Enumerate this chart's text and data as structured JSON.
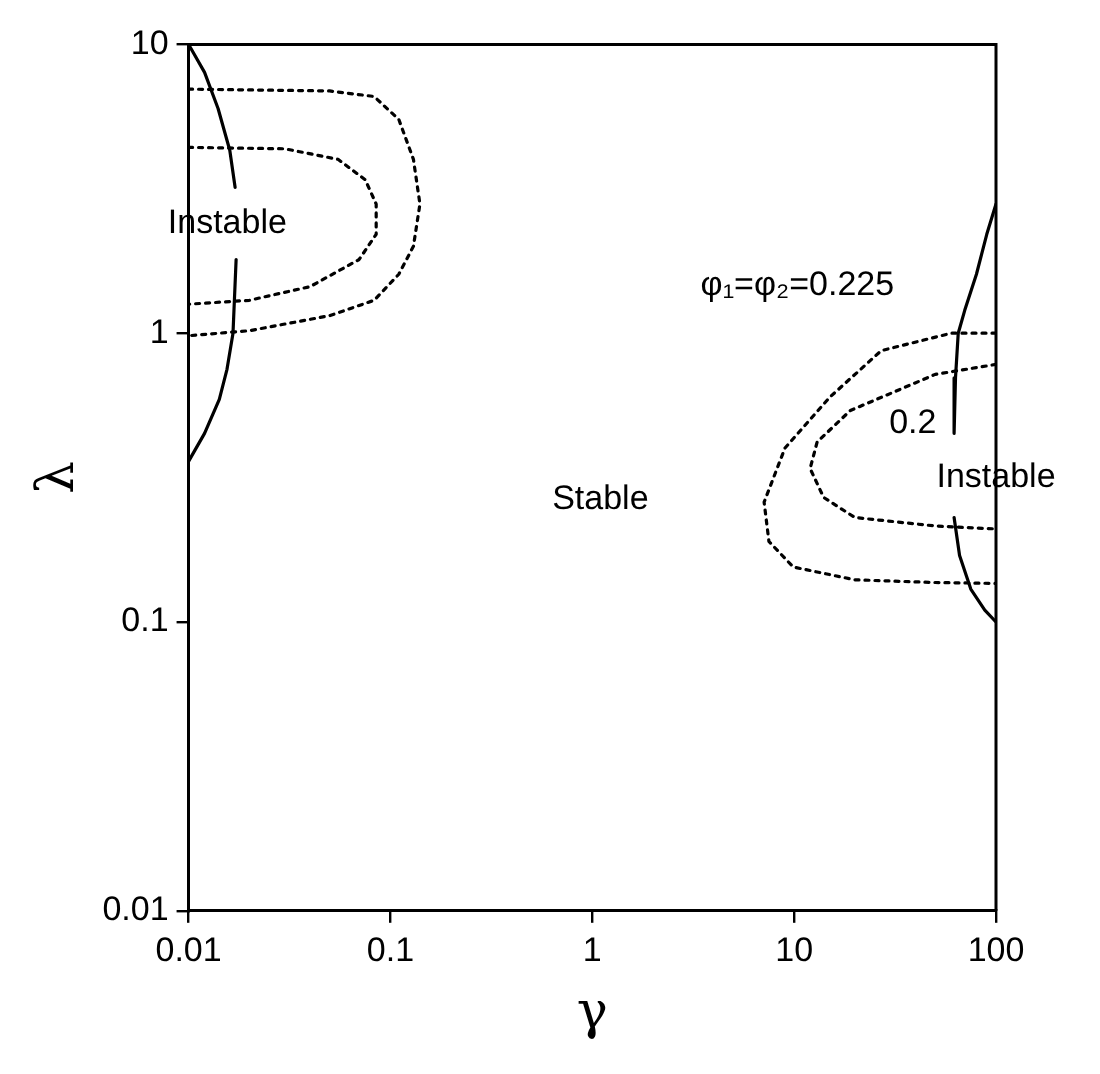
{
  "chart_data": {
    "type": "line",
    "xlabel": "γ",
    "ylabel": "λ",
    "log": "xy",
    "grid": false,
    "legend": false,
    "marker": "none",
    "xlim": [
      0.01,
      100
    ],
    "ylim": [
      0.01,
      10
    ],
    "xticks": [
      0.01,
      0.1,
      1,
      10,
      100
    ],
    "yticks": [
      0.01,
      0.1,
      1,
      10
    ],
    "series": [
      {
        "color": "#000000",
        "line_style": "solid",
        "x": [
          0.01,
          0.012,
          0.014,
          0.016,
          0.017
        ],
        "values": [
          10,
          8,
          6,
          4.3,
          3.2
        ]
      },
      {
        "color": "#000000",
        "line_style": "solid",
        "x": [
          0.0172,
          0.0166,
          0.0155,
          0.0142,
          0.012,
          0.01
        ],
        "values": [
          1.8,
          1,
          0.75,
          0.59,
          0.45,
          0.36
        ]
      },
      {
        "color": "#000000",
        "line_style": "dotted",
        "x": [
          0.01,
          0.05,
          0.083,
          0.11,
          0.13,
          0.14,
          0.13,
          0.11,
          0.083,
          0.05,
          0.02,
          0.01
        ],
        "values": [
          7,
          6.9,
          6.6,
          5.5,
          4,
          2.8,
          2,
          1.6,
          1.3,
          1.15,
          1.02,
          0.98
        ]
      },
      {
        "color": "#000000",
        "line_style": "dotted",
        "x": [
          0.01,
          0.03,
          0.055,
          0.075,
          0.085,
          0.085,
          0.07,
          0.04,
          0.02,
          0.01
        ],
        "values": [
          4.4,
          4.35,
          4,
          3.4,
          2.8,
          2.2,
          1.8,
          1.45,
          1.3,
          1.26
        ]
      },
      {
        "color": "#000000",
        "line_style": "solid",
        "x": [
          100,
          90,
          80,
          70,
          65,
          63,
          62
        ],
        "values": [
          2.8,
          2.2,
          1.6,
          1.2,
          1,
          0.7,
          0.45
        ]
      },
      {
        "color": "#000000",
        "line_style": "solid",
        "x": [
          62,
          66,
          75,
          88,
          100
        ],
        "values": [
          0.23,
          0.17,
          0.13,
          0.11,
          0.1
        ]
      },
      {
        "color": "#000000",
        "line_style": "dotted",
        "x": [
          100,
          60,
          27,
          15,
          9,
          7.1,
          7.5,
          9.9,
          20,
          50,
          100
        ],
        "values": [
          1,
          1,
          0.87,
          0.6,
          0.4,
          0.26,
          0.19,
          0.155,
          0.14,
          0.137,
          0.136
        ]
      },
      {
        "color": "#000000",
        "line_style": "dotted",
        "x": [
          100,
          50,
          19,
          13,
          12,
          14,
          20,
          50,
          100
        ],
        "values": [
          0.78,
          0.72,
          0.54,
          0.42,
          0.34,
          0.27,
          0.23,
          0.215,
          0.21
        ]
      }
    ],
    "annotations": [
      "Instable",
      "Stable",
      "Instable",
      "φ₁=φ₂=0.225",
      "0.2"
    ]
  }
}
